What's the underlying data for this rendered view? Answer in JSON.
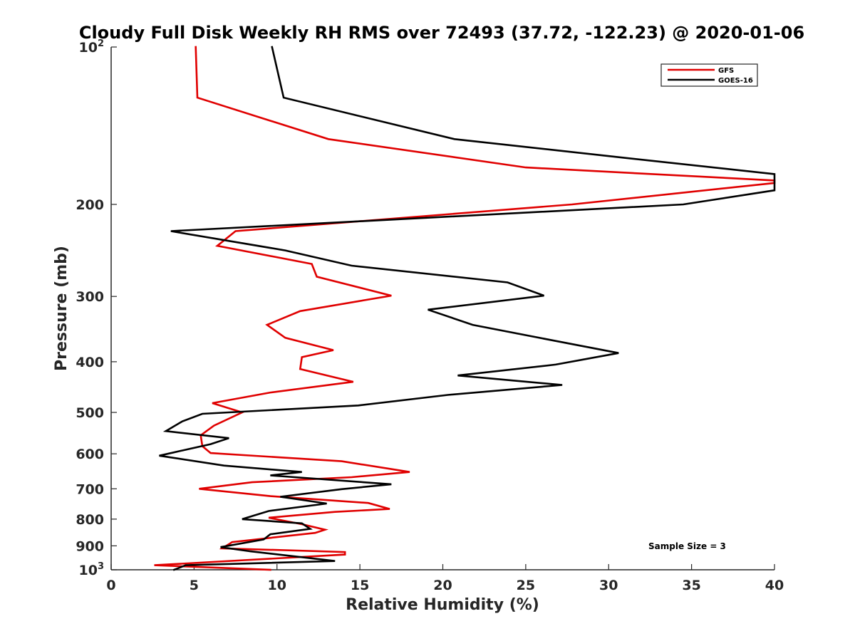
{
  "chart_data": {
    "type": "line",
    "title": "Cloudy Full Disk Weekly RH RMS over 72493 (37.72, -122.23) @ 2020-01-06",
    "xlabel": "Relative Humidity (%)",
    "ylabel": "Pressure (mb)",
    "xlim": [
      0,
      40
    ],
    "ylim": [
      100,
      1000
    ],
    "y_scale": "log",
    "y_reversed": true,
    "grid": false,
    "legend_position": "top-right",
    "annotation": "Sample Size = 3",
    "xticks": [
      "0",
      "5",
      "10",
      "15",
      "20",
      "25",
      "30",
      "35",
      "40"
    ],
    "yticks": [
      {
        "value": 100,
        "base": "10",
        "exp": "2"
      },
      {
        "value": 200,
        "label": "200"
      },
      {
        "value": 300,
        "label": "300"
      },
      {
        "value": 400,
        "label": "400"
      },
      {
        "value": 500,
        "label": "500"
      },
      {
        "value": 600,
        "label": "600"
      },
      {
        "value": 700,
        "label": "700"
      },
      {
        "value": 800,
        "label": "800"
      },
      {
        "value": 900,
        "label": "900"
      },
      {
        "value": 1000,
        "base": "10",
        "exp": "3"
      }
    ],
    "series": [
      {
        "name": "GFS",
        "color": "#e00000",
        "points": [
          [
            5.1,
            100
          ],
          [
            5.2,
            125
          ],
          [
            13.1,
            150
          ],
          [
            25,
            170
          ],
          [
            40,
            180
          ],
          [
            40,
            182
          ],
          [
            27.8,
            200
          ],
          [
            7.5,
            225
          ],
          [
            6.4,
            240
          ],
          [
            12.1,
            260
          ],
          [
            12.4,
            275
          ],
          [
            16.9,
            299
          ],
          [
            11.4,
            320
          ],
          [
            9.4,
            340
          ],
          [
            10.5,
            360
          ],
          [
            13.4,
            380
          ],
          [
            11.5,
            392
          ],
          [
            11.4,
            413
          ],
          [
            14.6,
            437
          ],
          [
            9.6,
            458
          ],
          [
            6.1,
            480
          ],
          [
            7.9,
            500
          ],
          [
            6.2,
            530
          ],
          [
            5.4,
            553
          ],
          [
            5.5,
            580
          ],
          [
            6.0,
            598
          ],
          [
            13.9,
            620
          ],
          [
            18.0,
            650
          ],
          [
            14.5,
            665
          ],
          [
            8.5,
            680
          ],
          [
            5.3,
            700
          ],
          [
            9.6,
            723
          ],
          [
            15.5,
            745
          ],
          [
            16.8,
            765
          ],
          [
            13.5,
            775
          ],
          [
            9.5,
            795
          ],
          [
            11.5,
            818
          ],
          [
            12.9,
            838
          ],
          [
            12.3,
            850
          ],
          [
            7.3,
            885
          ],
          [
            6.7,
            910
          ],
          [
            14.1,
            925
          ],
          [
            14.1,
            935
          ],
          [
            2.6,
            980
          ],
          [
            9.6,
            1000
          ]
        ]
      },
      {
        "name": "GOES-16",
        "color": "#000000",
        "points": [
          [
            9.7,
            100
          ],
          [
            10.4,
            125
          ],
          [
            20.7,
            150
          ],
          [
            31,
            163
          ],
          [
            40,
            175
          ],
          [
            40,
            188
          ],
          [
            34.5,
            200
          ],
          [
            3.6,
            225
          ],
          [
            10.5,
            245
          ],
          [
            14.5,
            262
          ],
          [
            23.9,
            282
          ],
          [
            26.1,
            299
          ],
          [
            19.1,
            318
          ],
          [
            21.8,
            340
          ],
          [
            26.8,
            365
          ],
          [
            30.6,
            385
          ],
          [
            26.8,
            405
          ],
          [
            20.9,
            425
          ],
          [
            27.2,
            443
          ],
          [
            20.3,
            463
          ],
          [
            14.9,
            485
          ],
          [
            5.5,
            503
          ],
          [
            4.3,
            520
          ],
          [
            3.3,
            543
          ],
          [
            7.1,
            560
          ],
          [
            6.0,
            575
          ],
          [
            2.9,
            605
          ],
          [
            6.8,
            632
          ],
          [
            11.5,
            650
          ],
          [
            9.6,
            660
          ],
          [
            16.9,
            686
          ],
          [
            13.9,
            701
          ],
          [
            10.2,
            725
          ],
          [
            11.5,
            735
          ],
          [
            13.0,
            747
          ],
          [
            9.5,
            772
          ],
          [
            7.9,
            800
          ],
          [
            11.5,
            815
          ],
          [
            12.0,
            835
          ],
          [
            9.6,
            855
          ],
          [
            9.2,
            875
          ],
          [
            6.6,
            905
          ],
          [
            8.4,
            922
          ],
          [
            13.5,
            962
          ],
          [
            4.5,
            980
          ],
          [
            3.8,
            1000
          ]
        ]
      }
    ]
  }
}
